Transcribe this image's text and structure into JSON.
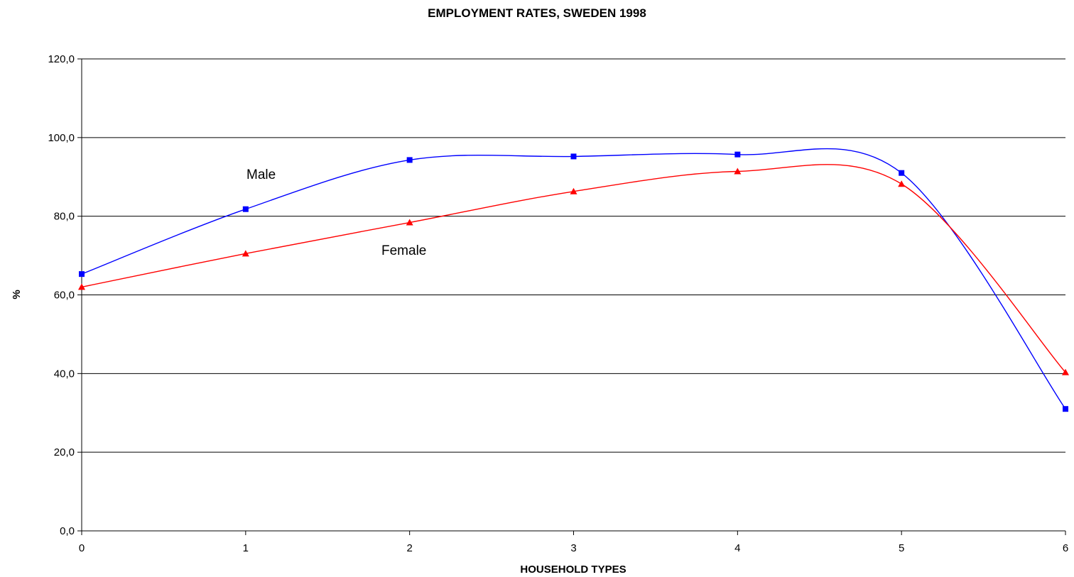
{
  "chart_data": {
    "type": "line",
    "title": "EMPLOYMENT RATES, SWEDEN 1998",
    "xlabel": "HOUSEHOLD TYPES",
    "ylabel": "%",
    "x": [
      0,
      1,
      2,
      3,
      4,
      5,
      6
    ],
    "xlim": [
      0,
      6
    ],
    "ylim": [
      0,
      120
    ],
    "x_ticks": [
      "0",
      "1",
      "2",
      "3",
      "4",
      "5",
      "6"
    ],
    "y_ticks": [
      "0,0",
      "20,0",
      "40,0",
      "60,0",
      "80,0",
      "100,0",
      "120,0"
    ],
    "y_tick_values": [
      0,
      20,
      40,
      60,
      80,
      100,
      120
    ],
    "grid": true,
    "smoothed": true,
    "series": [
      {
        "name": "Male",
        "color": "#0000ff",
        "marker": "square",
        "values": [
          65.3,
          81.8,
          94.3,
          95.2,
          95.7,
          91.0,
          31.0
        ]
      },
      {
        "name": "Female",
        "color": "#ff0000",
        "marker": "triangle",
        "values": [
          62.0,
          70.5,
          78.4,
          86.3,
          91.4,
          88.2,
          40.3
        ]
      }
    ]
  }
}
